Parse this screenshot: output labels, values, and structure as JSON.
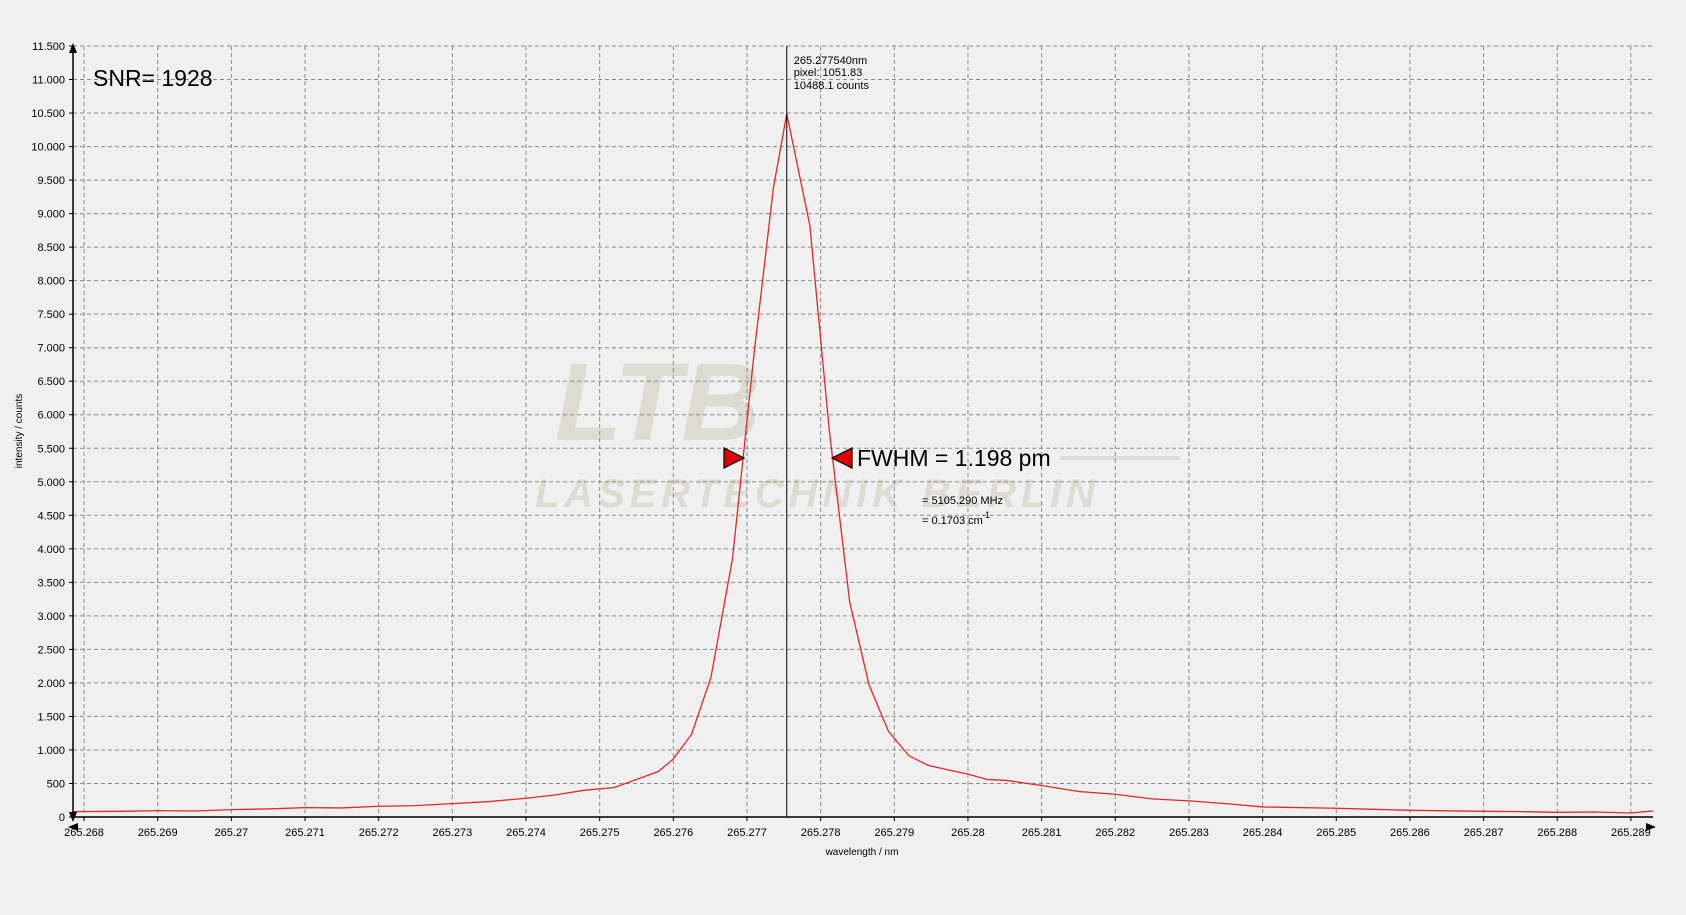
{
  "chart_data": {
    "type": "line",
    "x_label": "wavelength / nm",
    "y_label": "intensity / counts",
    "color": "#e02828",
    "x": [
      265.26785,
      265.2685,
      265.269,
      265.2695,
      265.27,
      265.2705,
      265.271,
      265.2715,
      265.272,
      265.2725,
      265.273,
      265.2735,
      265.274,
      265.2744,
      265.2748,
      265.2752,
      265.2755,
      265.2758,
      265.276,
      265.276248,
      265.276511,
      265.276803,
      265.277095,
      265.277358,
      265.27754,
      265.277854,
      265.278117,
      265.278394,
      265.278657,
      265.27892,
      265.279197,
      265.27946,
      265.279723,
      265.28,
      265.280263,
      265.280526,
      265.281,
      265.2815,
      265.282,
      265.2825,
      265.283,
      265.2835,
      265.284,
      265.285,
      265.2855,
      265.286,
      265.287,
      265.2875,
      265.288,
      265.2885,
      265.289,
      265.2893
    ],
    "values": [
      80,
      85,
      95,
      90,
      110,
      120,
      140,
      135,
      160,
      170,
      200,
      230,
      280,
      330,
      400,
      440,
      560,
      680,
      866,
      1235,
      2085,
      3850,
      6900,
      9380,
      10488.1,
      8820,
      5770,
      3210,
      1970,
      1280,
      915,
      770,
      705,
      640,
      560,
      545,
      470,
      380,
      340,
      270,
      240,
      200,
      150,
      130,
      115,
      100,
      85,
      80,
      70,
      75,
      60,
      90
    ],
    "xlim": [
      265.26785,
      265.2893
    ],
    "ylim": [
      0,
      11500
    ],
    "xticks": [
      265.268,
      265.269,
      265.27,
      265.271,
      265.272,
      265.273,
      265.274,
      265.275,
      265.276,
      265.277,
      265.278,
      265.279,
      265.28,
      265.281,
      265.282,
      265.283,
      265.284,
      265.285,
      265.286,
      265.287,
      265.288,
      265.289
    ],
    "yticks": [
      0,
      500,
      {
        "value": 1000,
        "label": "1.000"
      },
      {
        "value": 1500,
        "label": "1.500"
      },
      {
        "value": 2000,
        "label": "2.000"
      },
      {
        "value": 2500,
        "label": "2.500"
      },
      {
        "value": 3000,
        "label": "3.000"
      },
      {
        "value": 3500,
        "label": "3.500"
      },
      {
        "value": 4000,
        "label": "4.000"
      },
      {
        "value": 4500,
        "label": "4.500"
      },
      {
        "value": 5000,
        "label": "5.000"
      },
      {
        "value": 5500,
        "label": "5.500"
      },
      {
        "value": 6000,
        "label": "6.000"
      },
      {
        "value": 6500,
        "label": "6.500"
      },
      {
        "value": 7000,
        "label": "7.000"
      },
      {
        "value": 7500,
        "label": "7.500"
      },
      {
        "value": 8000,
        "label": "8.000"
      },
      {
        "value": 8500,
        "label": "8.500"
      },
      {
        "value": 9000,
        "label": "9.000"
      },
      {
        "value": 9500,
        "label": "9.500"
      },
      {
        "value": 10000,
        "label": "10.000"
      },
      {
        "value": 10500,
        "label": "10.500"
      },
      {
        "value": 11000,
        "label": "11.000"
      },
      {
        "value": 11500,
        "label": "11.500"
      }
    ],
    "grid": true,
    "snr": "SNR= 1928",
    "cursor": {
      "value": 265.27754,
      "label": "265.277540nm",
      "pixel": "pixel:  1051.83",
      "counts": "10488.1 counts"
    },
    "fwhm": "FWHM = 1.198 pm",
    "fwhm_freq": "= 5105.290 MHz",
    "fwhm_wavenumber": "= 0.1703 cm",
    "fwhm_wavenumber_exp": "-1",
    "watermark": {
      "logo": "LTB",
      "text": "LASERTECHNIK BERLIN"
    }
  }
}
